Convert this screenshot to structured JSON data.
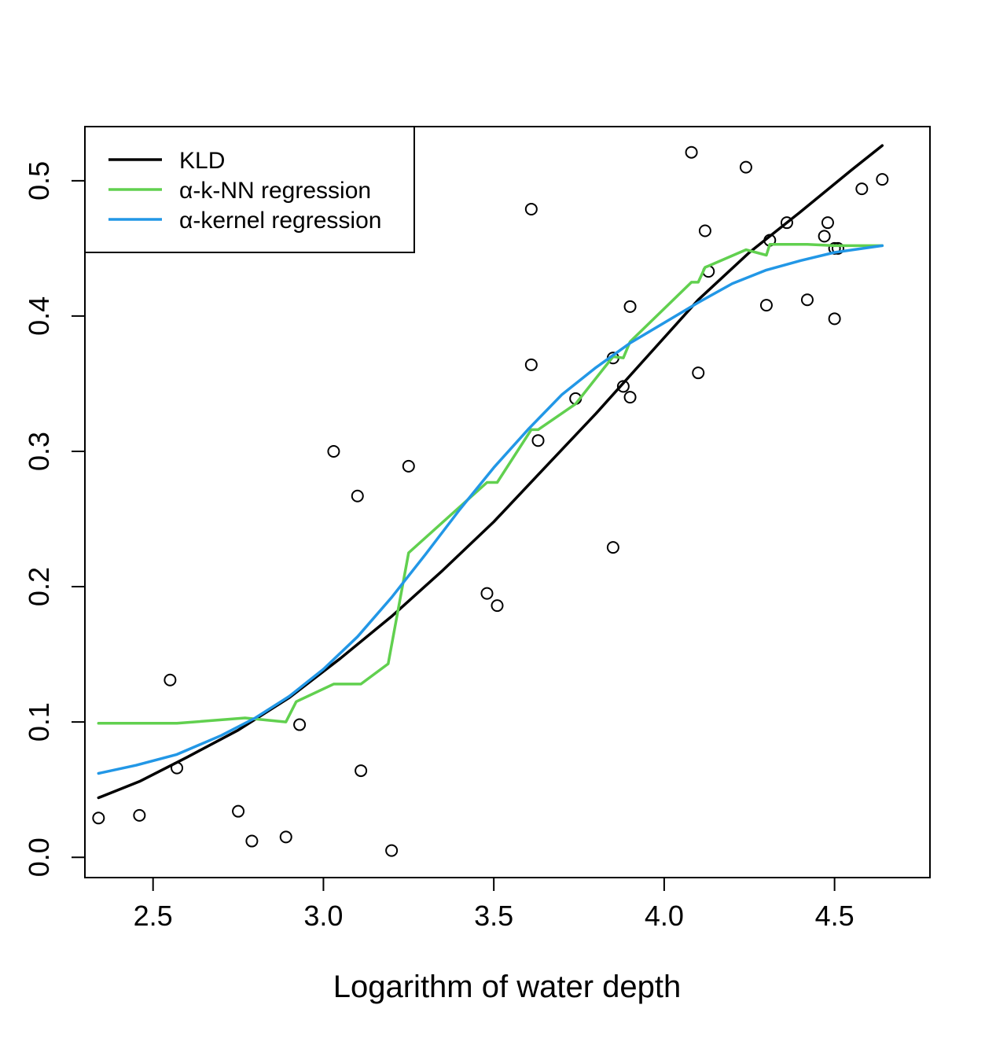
{
  "chart_data": {
    "type": "scatter",
    "title": "",
    "xlabel": "Logarithm of water depth",
    "ylabel": "",
    "xlim": [
      2.3,
      4.78
    ],
    "ylim": [
      -0.015,
      0.54
    ],
    "x_ticks": [
      2.5,
      3.0,
      3.5,
      4.0,
      4.5
    ],
    "x_tick_labels": [
      "2.5",
      "3.0",
      "3.5",
      "4.0",
      "4.5"
    ],
    "y_ticks": [
      0.0,
      0.1,
      0.2,
      0.3,
      0.4,
      0.5
    ],
    "y_tick_labels": [
      "0.0",
      "0.1",
      "0.2",
      "0.3",
      "0.4",
      "0.5"
    ],
    "grid": false,
    "legend_position": "top-left",
    "points": {
      "name": "observations",
      "marker": "open-circle",
      "x": [
        2.34,
        2.46,
        2.55,
        2.57,
        2.75,
        2.79,
        2.89,
        2.93,
        3.03,
        3.1,
        3.11,
        3.2,
        3.25,
        3.48,
        3.51,
        3.61,
        3.61,
        3.63,
        3.74,
        3.85,
        3.85,
        3.88,
        3.9,
        3.9,
        4.08,
        4.1,
        4.12,
        4.13,
        4.24,
        4.3,
        4.31,
        4.36,
        4.42,
        4.47,
        4.48,
        4.5,
        4.5,
        4.51,
        4.58,
        4.64
      ],
      "y": [
        0.029,
        0.031,
        0.131,
        0.066,
        0.034,
        0.012,
        0.015,
        0.098,
        0.3,
        0.267,
        0.064,
        0.005,
        0.289,
        0.195,
        0.186,
        0.364,
        0.479,
        0.308,
        0.339,
        0.369,
        0.229,
        0.348,
        0.34,
        0.407,
        0.521,
        0.358,
        0.463,
        0.433,
        0.51,
        0.408,
        0.456,
        0.469,
        0.412,
        0.459,
        0.469,
        0.398,
        0.45,
        0.45,
        0.494,
        0.501
      ]
    },
    "series": [
      {
        "name": "KLD",
        "color": "#000000",
        "x": [
          2.34,
          2.46,
          2.6,
          2.75,
          2.9,
          3.05,
          3.2,
          3.35,
          3.5,
          3.65,
          3.8,
          3.95,
          4.1,
          4.25,
          4.4,
          4.55,
          4.64
        ],
        "y": [
          0.044,
          0.056,
          0.074,
          0.094,
          0.118,
          0.147,
          0.178,
          0.212,
          0.248,
          0.288,
          0.328,
          0.37,
          0.412,
          0.447,
          0.477,
          0.508,
          0.526
        ]
      },
      {
        "name": "α-k-NN regression",
        "color": "#61D04F",
        "x": [
          2.34,
          2.57,
          2.77,
          2.89,
          2.92,
          3.03,
          3.11,
          3.19,
          3.25,
          3.48,
          3.51,
          3.61,
          3.63,
          3.74,
          3.85,
          3.88,
          3.9,
          4.08,
          4.1,
          4.12,
          4.13,
          4.24,
          4.3,
          4.31,
          4.36,
          4.42,
          4.5,
          4.64
        ],
        "y": [
          0.099,
          0.099,
          0.103,
          0.1,
          0.115,
          0.128,
          0.128,
          0.143,
          0.225,
          0.277,
          0.277,
          0.316,
          0.316,
          0.335,
          0.37,
          0.369,
          0.381,
          0.425,
          0.425,
          0.436,
          0.437,
          0.449,
          0.445,
          0.453,
          0.453,
          0.453,
          0.452,
          0.452
        ]
      },
      {
        "name": "α-kernel regression",
        "color": "#2297E6",
        "x": [
          2.34,
          2.45,
          2.57,
          2.7,
          2.8,
          2.9,
          3.0,
          3.1,
          3.2,
          3.3,
          3.4,
          3.5,
          3.6,
          3.7,
          3.8,
          3.9,
          4.0,
          4.1,
          4.2,
          4.3,
          4.4,
          4.5,
          4.64
        ],
        "y": [
          0.062,
          0.068,
          0.076,
          0.09,
          0.103,
          0.119,
          0.139,
          0.163,
          0.192,
          0.224,
          0.257,
          0.288,
          0.316,
          0.342,
          0.362,
          0.38,
          0.395,
          0.41,
          0.424,
          0.434,
          0.441,
          0.447,
          0.452
        ]
      }
    ]
  }
}
